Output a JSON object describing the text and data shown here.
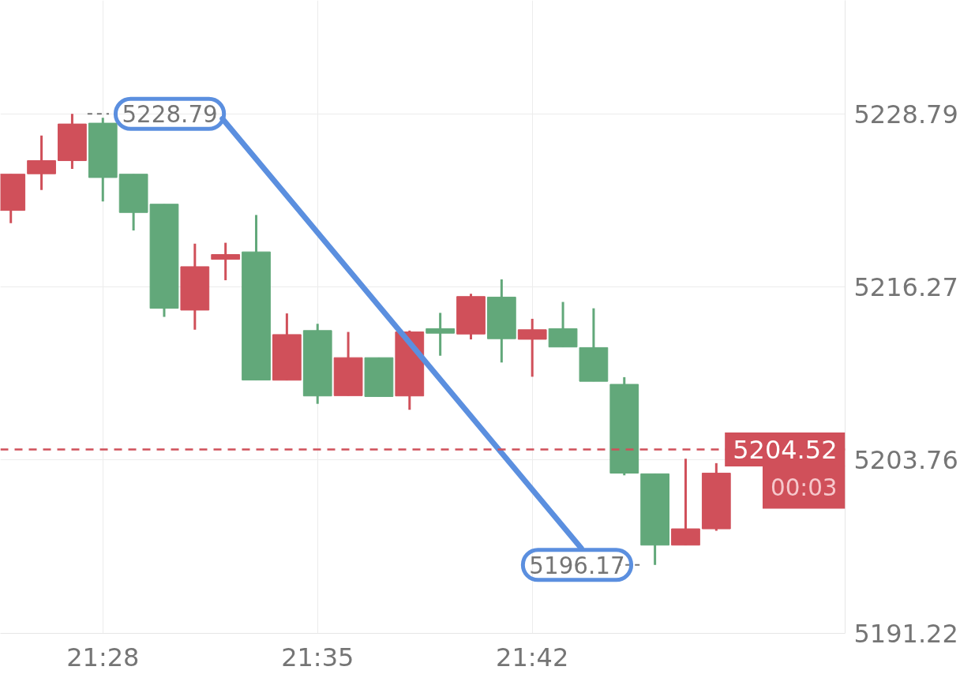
{
  "chart_data": {
    "type": "candlestick",
    "x": [
      21.416667,
      21.433333,
      21.45,
      21.466667,
      21.483333,
      21.5,
      21.516667,
      21.533333,
      21.55,
      21.566667,
      21.583333,
      21.6,
      21.616667,
      21.633333,
      21.65,
      21.666667,
      21.683333,
      21.7,
      21.716667,
      21.733333,
      21.75,
      21.766667,
      21.783333,
      21.8
    ],
    "ohlc": [
      [
        5221.81,
        5224.43,
        5220.89,
        5224.43
      ],
      [
        5224.46,
        5227.23,
        5223.28,
        5225.41
      ],
      [
        5225.41,
        5228.79,
        5224.82,
        5228.06
      ],
      [
        5228.12,
        5228.51,
        5222.46,
        5224.19
      ],
      [
        5224.43,
        5224.43,
        5220.36,
        5221.66
      ],
      [
        5222.26,
        5222.26,
        5214.11,
        5214.73
      ],
      [
        5214.6,
        5219.41,
        5213.18,
        5217.74
      ],
      [
        5218.27,
        5219.47,
        5216.76,
        5218.62
      ],
      [
        5218.81,
        5221.48,
        5209.54,
        5209.54
      ],
      [
        5209.53,
        5214.36,
        5209.53,
        5212.83
      ],
      [
        5213.12,
        5213.61,
        5207.82,
        5208.39
      ],
      [
        5208.41,
        5213.02,
        5208.41,
        5211.16
      ],
      [
        5211.16,
        5211.16,
        5208.35,
        5208.35
      ],
      [
        5208.39,
        5213.12,
        5207.39,
        5213.02
      ],
      [
        5213.26,
        5214.4,
        5211.3,
        5212.93
      ],
      [
        5212.87,
        5215.78,
        5212.48,
        5215.58
      ],
      [
        5215.54,
        5216.82,
        5210.81,
        5212.53
      ],
      [
        5212.49,
        5213.97,
        5209.78,
        5213.18
      ],
      [
        5213.26,
        5215.19,
        5211.93,
        5211.93
      ],
      [
        5211.89,
        5214.73,
        5209.45,
        5209.45
      ],
      [
        5209.23,
        5209.75,
        5202.65,
        5202.81
      ],
      [
        5202.76,
        5202.76,
        5196.17,
        5197.6
      ],
      [
        5197.6,
        5203.85,
        5197.6,
        5198.78
      ],
      [
        5198.78,
        5203.53,
        5198.64,
        5202.81
      ]
    ],
    "colors": [
      "#d0505a",
      "#d0505a",
      "#d0505a",
      "#62a87a",
      "#62a87a",
      "#62a87a",
      "#d0505a",
      "#d0505a",
      "#62a87a",
      "#d0505a",
      "#62a87a",
      "#d0505a",
      "#62a87a",
      "#d0505a",
      "#62a87a",
      "#d0505a",
      "#62a87a",
      "#d0505a",
      "#62a87a",
      "#62a87a",
      "#62a87a",
      "#62a87a",
      "#d0505a",
      "#d0505a"
    ],
    "xlim": [
      21.411,
      21.87
    ],
    "ylim": [
      5191.22,
      5237.0
    ],
    "xticks": [
      {
        "value": 21.466667,
        "label": "21:28"
      },
      {
        "value": 21.583333,
        "label": "21:35"
      },
      {
        "value": 21.7,
        "label": "21:42"
      }
    ],
    "yticks": [
      5191.22,
      5203.76,
      5216.27,
      5228.79
    ],
    "grid": true,
    "ref_lines": [
      {
        "axis": "y",
        "value": 5204.52,
        "label": "5204.52",
        "color": "#d0505a",
        "line_style": "dashed"
      }
    ],
    "annotations": [
      {
        "text": "5228.79",
        "x": 21.45,
        "y": 5228.79
      },
      {
        "text": "5196.17",
        "x": 21.766667,
        "y": 5196.17
      },
      "00:03"
    ]
  }
}
